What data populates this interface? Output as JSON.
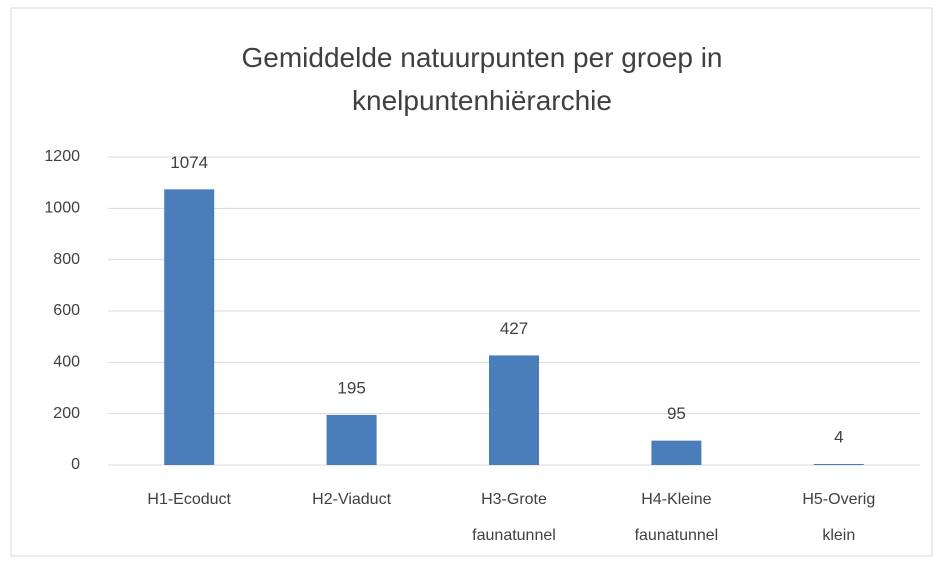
{
  "chart_data": {
    "type": "bar",
    "title": "Gemiddelde natuurpunten per groep in knelpuntenhiërarchie",
    "categories": [
      "H1-Ecoduct",
      "H2-Viaduct",
      "H3-Grote faunatunnel",
      "H4-Kleine faunatunnel",
      "H5-Overig klein"
    ],
    "values": [
      1074,
      195,
      427,
      95,
      4
    ],
    "color": "#4a7ebb",
    "ylim": [
      0,
      1200
    ],
    "yticks": [
      0,
      200,
      400,
      600,
      800,
      1000,
      1200
    ],
    "grid": true
  }
}
